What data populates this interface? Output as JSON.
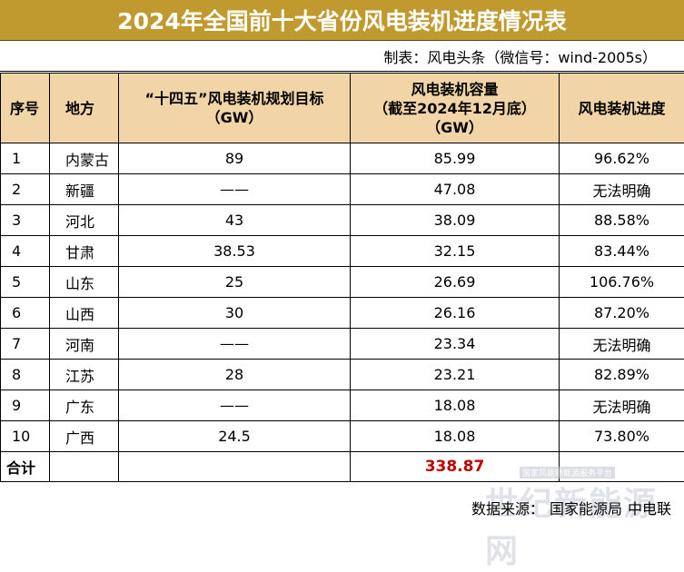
{
  "title": "2024年全国前十大省份风电装机进度情况表",
  "maker": "制表：风电头条（微信号：wind-2005s）",
  "headers": {
    "h0": "序号",
    "h1": "地方",
    "h2_line1": "“十四五”风电装机规划目标",
    "h2_line2": "（GW）",
    "h3_line1": "风电装机容量",
    "h3_line2": "（截至2024年12月底）",
    "h3_line3": "（GW）",
    "h4": "风电装机进度"
  },
  "rows": [
    {
      "no": "1",
      "region": "内蒙古",
      "target": "89",
      "capacity": "85.99",
      "progress": "96.62%"
    },
    {
      "no": "2",
      "region": "新疆",
      "target": "——",
      "capacity": "47.08",
      "progress": "无法明确"
    },
    {
      "no": "3",
      "region": "河北",
      "target": "43",
      "capacity": "38.09",
      "progress": "88.58%"
    },
    {
      "no": "4",
      "region": "甘肃",
      "target": "38.53",
      "capacity": "32.15",
      "progress": "83.44%"
    },
    {
      "no": "5",
      "region": "山东",
      "target": "25",
      "capacity": "26.69",
      "progress": "106.76%"
    },
    {
      "no": "6",
      "region": "山西",
      "target": "30",
      "capacity": "26.16",
      "progress": "87.20%"
    },
    {
      "no": "7",
      "region": "河南",
      "target": "——",
      "capacity": "23.34",
      "progress": "无法明确"
    },
    {
      "no": "8",
      "region": "江苏",
      "target": "28",
      "capacity": "23.21",
      "progress": "82.89%"
    },
    {
      "no": "9",
      "region": "广东",
      "target": "——",
      "capacity": "18.08",
      "progress": "无法明确"
    },
    {
      "no": "10",
      "region": "广西",
      "target": "24.5",
      "capacity": "18.08",
      "progress": "73.80%"
    }
  ],
  "total": {
    "label": "合计",
    "capacity": "338.87"
  },
  "source": {
    "label": "数据来源：",
    "org1": "国家能源局",
    "org2": "中电联"
  },
  "watermark": {
    "small": "国家风能新能源服务平台",
    "big": "世纪新能源网"
  },
  "colors": {
    "title_bg": "#c09a2e",
    "header_bg": "#f2d5a6",
    "total_red": "#c00000"
  }
}
